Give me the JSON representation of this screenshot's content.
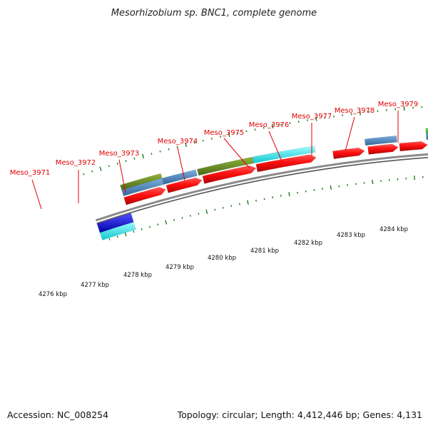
{
  "title": "Mesorhizobium sp. BNC1, complete genome",
  "footer": {
    "accession": "Accession: NC_008254",
    "summary": "Topology: circular; Length: 4,412,446 bp; Genes: 4,131"
  },
  "colors": {
    "cds": "#ff1010",
    "gene_label": "#e00000",
    "tick": "#1a7a1a",
    "backbone": "#8a8a8a",
    "steelblue": "#4f87bf",
    "olive": "#6b8e23",
    "cyan": "#1ee8ee",
    "green": "#3fd43f",
    "gray": "#666666",
    "blue": "#1010e0"
  },
  "scale_labels": [
    "4276 kbp",
    "4277 kbp",
    "4278 kbp",
    "4279 kbp",
    "4280 kbp",
    "4281 kbp",
    "4282 kbp",
    "4283 kbp",
    "4284 kbp"
  ],
  "gene_labels": [
    "Meso_3971",
    "Meso_3972",
    "Meso_3973",
    "Meso_3974",
    "Meso_3975",
    "Meso_3976",
    "Meso_3977",
    "Meso_3978",
    "Meso_3979"
  ]
}
